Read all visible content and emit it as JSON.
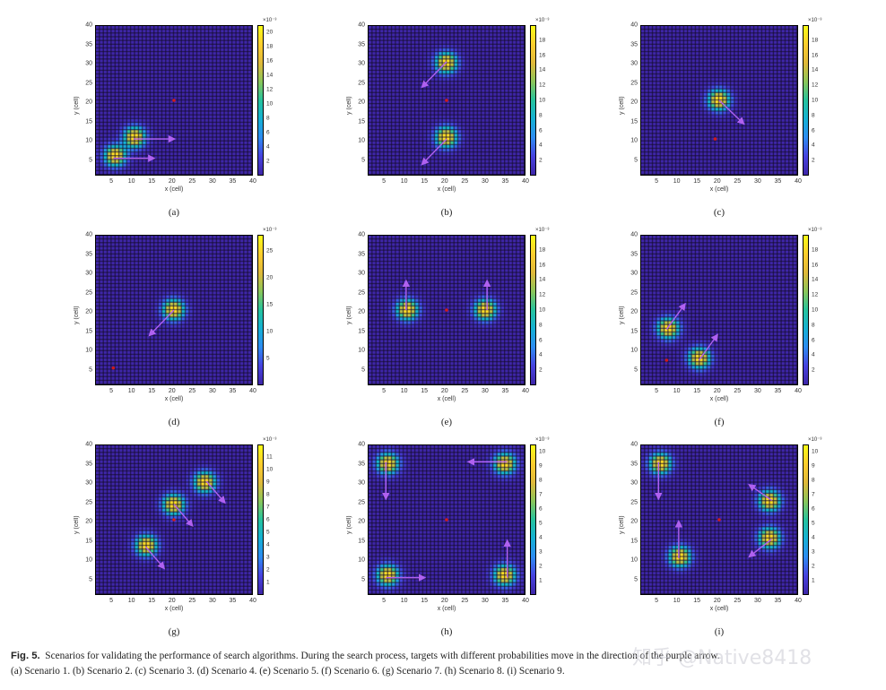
{
  "figure": {
    "caption_label": "Fig. 5.",
    "caption_text": "Scenarios for validating the performance of search algorithms. During the search process, targets with different probabilities move in the direction of the purple arrow.",
    "caption_line2": "(a) Scenario 1. (b) Scenario 2. (c) Scenario 3. (d) Scenario 4. (e) Scenario 5. (f) Scenario 6. (g) Scenario 7. (h) Scenario 8. (i) Scenario 9.",
    "watermark": "知乎 @Native8418"
  },
  "colors": {
    "background_cell": "#3e26a8",
    "grid_line": "#1a1030",
    "arrow": "#b061f0",
    "searcher_dot": "#d11a1a",
    "peak": "#f9fb15"
  },
  "chart_data": [
    {
      "type": "heatmap",
      "panel": "(a)",
      "title": "Scenario 1",
      "xlabel": "x (cell)",
      "ylabel": "y (cell)",
      "xlim": [
        1,
        40
      ],
      "ylim": [
        1,
        40
      ],
      "xticks": [
        5,
        10,
        15,
        20,
        25,
        30,
        35,
        40
      ],
      "yticks": [
        5,
        10,
        15,
        20,
        25,
        30,
        35,
        40
      ],
      "colorbar": {
        "exponent": "×10⁻³",
        "ticks": [
          2,
          4,
          6,
          8,
          10,
          12,
          14,
          16,
          18,
          20
        ],
        "max": 21
      },
      "searcher": [
        20.5,
        20.5
      ],
      "targets": [
        {
          "x": 5.5,
          "y": 5.5,
          "arrow_to": [
            15.5,
            5.5
          ]
        },
        {
          "x": 10.5,
          "y": 10.5,
          "arrow_to": [
            20.5,
            10.5
          ]
        }
      ]
    },
    {
      "type": "heatmap",
      "panel": "(b)",
      "title": "Scenario 2",
      "xlabel": "x (cell)",
      "ylabel": "y (cell)",
      "xlim": [
        1,
        40
      ],
      "ylim": [
        1,
        40
      ],
      "xticks": [
        5,
        10,
        15,
        20,
        25,
        30,
        35,
        40
      ],
      "yticks": [
        5,
        10,
        15,
        20,
        25,
        30,
        35,
        40
      ],
      "colorbar": {
        "exponent": "×10⁻³",
        "ticks": [
          2,
          4,
          6,
          8,
          10,
          12,
          14,
          16,
          18
        ],
        "max": 20
      },
      "searcher": [
        20.5,
        20.5
      ],
      "targets": [
        {
          "x": 20.5,
          "y": 30.5,
          "arrow_to": [
            14.5,
            24.0
          ]
        },
        {
          "x": 20.5,
          "y": 10.5,
          "arrow_to": [
            14.5,
            4.0
          ]
        }
      ]
    },
    {
      "type": "heatmap",
      "panel": "(c)",
      "title": "Scenario 3",
      "xlabel": "x (cell)",
      "ylabel": "y (cell)",
      "xlim": [
        1,
        40
      ],
      "ylim": [
        1,
        40
      ],
      "xticks": [
        5,
        10,
        15,
        20,
        25,
        30,
        35,
        40
      ],
      "yticks": [
        5,
        10,
        15,
        20,
        25,
        30,
        35,
        40
      ],
      "colorbar": {
        "exponent": "×10⁻³",
        "ticks": [
          2,
          4,
          6,
          8,
          10,
          12,
          14,
          16,
          18
        ],
        "max": 20
      },
      "searcher": [
        19.5,
        10.5
      ],
      "targets": [
        {
          "x": 20.5,
          "y": 20.5,
          "arrow_to": [
            26.5,
            14.5
          ]
        }
      ]
    },
    {
      "type": "heatmap",
      "panel": "(d)",
      "title": "Scenario 4",
      "xlabel": "x (cell)",
      "ylabel": "y (cell)",
      "xlim": [
        1,
        40
      ],
      "ylim": [
        1,
        40
      ],
      "xticks": [
        5,
        10,
        15,
        20,
        25,
        30,
        35,
        40
      ],
      "yticks": [
        5,
        10,
        15,
        20,
        25,
        30,
        35,
        40
      ],
      "colorbar": {
        "exponent": "×10⁻³",
        "ticks": [
          5,
          10,
          15,
          20,
          25
        ],
        "max": 28
      },
      "searcher": [
        5.5,
        5.5
      ],
      "targets": [
        {
          "x": 20.5,
          "y": 20.5,
          "arrow_to": [
            14.5,
            14.0
          ]
        }
      ]
    },
    {
      "type": "heatmap",
      "panel": "(e)",
      "title": "Scenario 5",
      "xlabel": "x (cell)",
      "ylabel": "y (cell)",
      "xlim": [
        1,
        40
      ],
      "ylim": [
        1,
        40
      ],
      "xticks": [
        5,
        10,
        15,
        20,
        25,
        30,
        35,
        40
      ],
      "yticks": [
        5,
        10,
        15,
        20,
        25,
        30,
        35,
        40
      ],
      "colorbar": {
        "exponent": "×10⁻³",
        "ticks": [
          2,
          4,
          6,
          8,
          10,
          12,
          14,
          16,
          18
        ],
        "max": 20
      },
      "searcher": [
        20.5,
        20.5
      ],
      "targets": [
        {
          "x": 10.5,
          "y": 20.5,
          "arrow_to": [
            10.5,
            28.0
          ]
        },
        {
          "x": 30.5,
          "y": 20.5,
          "arrow_to": [
            30.5,
            28.0
          ]
        }
      ]
    },
    {
      "type": "heatmap",
      "panel": "(f)",
      "title": "Scenario 6",
      "xlabel": "x (cell)",
      "ylabel": "y (cell)",
      "xlim": [
        1,
        40
      ],
      "ylim": [
        1,
        40
      ],
      "xticks": [
        5,
        10,
        15,
        20,
        25,
        30,
        35,
        40
      ],
      "yticks": [
        5,
        10,
        15,
        20,
        25,
        30,
        35,
        40
      ],
      "colorbar": {
        "exponent": "×10⁻³",
        "ticks": [
          2,
          4,
          6,
          8,
          10,
          12,
          14,
          16,
          18
        ],
        "max": 20
      },
      "searcher": [
        7.5,
        7.5
      ],
      "targets": [
        {
          "x": 7.5,
          "y": 15.5,
          "arrow_to": [
            12.0,
            22.0
          ]
        },
        {
          "x": 15.5,
          "y": 7.5,
          "arrow_to": [
            20.0,
            14.0
          ]
        }
      ]
    },
    {
      "type": "heatmap",
      "panel": "(g)",
      "title": "Scenario 7",
      "xlabel": "x (cell)",
      "ylabel": "y (cell)",
      "xlim": [
        1,
        40
      ],
      "ylim": [
        1,
        40
      ],
      "xticks": [
        5,
        10,
        15,
        20,
        25,
        30,
        35,
        40
      ],
      "yticks": [
        5,
        10,
        15,
        20,
        25,
        30,
        35,
        40
      ],
      "colorbar": {
        "exponent": "×10⁻³",
        "ticks": [
          1,
          2,
          3,
          4,
          5,
          6,
          7,
          8,
          9,
          10,
          11
        ],
        "max": 12
      },
      "searcher": [
        20.5,
        20.5
      ],
      "targets": [
        {
          "x": 13.5,
          "y": 13.5,
          "arrow_to": [
            18.0,
            8.0
          ]
        },
        {
          "x": 20.5,
          "y": 24.5,
          "arrow_to": [
            25.0,
            19.0
          ]
        },
        {
          "x": 28.5,
          "y": 30.5,
          "arrow_to": [
            33.0,
            25.0
          ]
        }
      ]
    },
    {
      "type": "heatmap",
      "panel": "(h)",
      "title": "Scenario 8",
      "xlabel": "x (cell)",
      "ylabel": "y (cell)",
      "xlim": [
        1,
        40
      ],
      "ylim": [
        1,
        40
      ],
      "xticks": [
        5,
        10,
        15,
        20,
        25,
        30,
        35,
        40
      ],
      "yticks": [
        5,
        10,
        15,
        20,
        25,
        30,
        35,
        40
      ],
      "colorbar": {
        "exponent": "×10⁻³",
        "ticks": [
          1,
          2,
          3,
          4,
          5,
          6,
          7,
          8,
          9,
          10
        ],
        "max": 10.5
      },
      "searcher": [
        20.5,
        20.5
      ],
      "targets": [
        {
          "x": 5.5,
          "y": 35.5,
          "arrow_to": [
            5.5,
            26.0
          ]
        },
        {
          "x": 35.5,
          "y": 35.5,
          "arrow_to": [
            26.0,
            35.5
          ]
        },
        {
          "x": 5.5,
          "y": 5.5,
          "arrow_to": [
            15.0,
            5.5
          ]
        },
        {
          "x": 35.5,
          "y": 5.5,
          "arrow_to": [
            35.5,
            15.0
          ]
        }
      ]
    },
    {
      "type": "heatmap",
      "panel": "(i)",
      "title": "Scenario 9",
      "xlabel": "x (cell)",
      "ylabel": "y (cell)",
      "xlim": [
        1,
        40
      ],
      "ylim": [
        1,
        40
      ],
      "xticks": [
        5,
        10,
        15,
        20,
        25,
        30,
        35,
        40
      ],
      "yticks": [
        5,
        10,
        15,
        20,
        25,
        30,
        35,
        40
      ],
      "colorbar": {
        "exponent": "×10⁻³",
        "ticks": [
          1,
          2,
          3,
          4,
          5,
          6,
          7,
          8,
          9,
          10
        ],
        "max": 10.5
      },
      "searcher": [
        20.5,
        20.5
      ],
      "targets": [
        {
          "x": 5.5,
          "y": 35.5,
          "arrow_to": [
            5.5,
            26.0
          ]
        },
        {
          "x": 10.5,
          "y": 10.5,
          "arrow_to": [
            10.5,
            20.0
          ]
        },
        {
          "x": 33.5,
          "y": 25.5,
          "arrow_to": [
            28.0,
            29.5
          ]
        },
        {
          "x": 33.5,
          "y": 15.5,
          "arrow_to": [
            28.0,
            11.0
          ]
        }
      ]
    }
  ]
}
